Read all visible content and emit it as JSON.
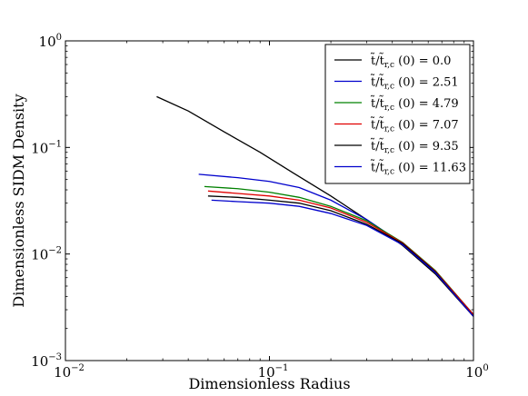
{
  "chart_data": {
    "type": "line",
    "xlabel": "Dimensionless Radius",
    "ylabel": "Dimensionless SIDM Density",
    "xscale": "log",
    "yscale": "log",
    "xlim": [
      0.01,
      1
    ],
    "ylim": [
      0.001,
      1
    ],
    "x_ticks": [
      {
        "value": 0.01,
        "base": "10",
        "exp": "−2"
      },
      {
        "value": 0.1,
        "base": "10",
        "exp": "−1"
      },
      {
        "value": 1,
        "base": "10",
        "exp": "0"
      }
    ],
    "y_ticks": [
      {
        "value": 0.001,
        "base": "10",
        "exp": "−3"
      },
      {
        "value": 0.01,
        "base": "10",
        "exp": "−2"
      },
      {
        "value": 0.1,
        "base": "10",
        "exp": "−1"
      },
      {
        "value": 1,
        "base": "10",
        "exp": "0"
      }
    ],
    "grid": false,
    "legend_position": "top-right",
    "legend_label_prefix": "t̃/t̃",
    "legend_label_sub": "r,c",
    "legend_label_suffix": " (0) = ",
    "series": [
      {
        "name": "t̃/t̃r,c (0) = 0.0",
        "legend_value": "0.0",
        "color": "#000000",
        "points": [
          [
            0.028,
            0.3
          ],
          [
            0.04,
            0.22
          ],
          [
            0.06,
            0.14
          ],
          [
            0.09,
            0.09
          ],
          [
            0.13,
            0.058
          ],
          [
            0.2,
            0.035
          ],
          [
            0.3,
            0.021
          ],
          [
            0.45,
            0.012
          ],
          [
            0.65,
            0.0065
          ],
          [
            1.0,
            0.0026
          ]
        ]
      },
      {
        "name": "t̃/t̃r,c (0) = 2.51",
        "legend_value": "2.51",
        "color": "#0000cc",
        "points": [
          [
            0.045,
            0.056
          ],
          [
            0.07,
            0.052
          ],
          [
            0.1,
            0.048
          ],
          [
            0.14,
            0.042
          ],
          [
            0.2,
            0.032
          ],
          [
            0.3,
            0.021
          ],
          [
            0.45,
            0.0125
          ],
          [
            0.65,
            0.0068
          ],
          [
            1.0,
            0.0027
          ]
        ]
      },
      {
        "name": "t̃/t̃r,c (0) = 4.79",
        "legend_value": "4.79",
        "color": "#008000",
        "points": [
          [
            0.048,
            0.043
          ],
          [
            0.07,
            0.041
          ],
          [
            0.1,
            0.038
          ],
          [
            0.14,
            0.034
          ],
          [
            0.2,
            0.028
          ],
          [
            0.3,
            0.0205
          ],
          [
            0.45,
            0.0128
          ],
          [
            0.65,
            0.007
          ],
          [
            1.0,
            0.0027
          ]
        ]
      },
      {
        "name": "t̃/t̃r,c (0) = 7.07",
        "legend_value": "7.07",
        "color": "#e00000",
        "points": [
          [
            0.05,
            0.039
          ],
          [
            0.07,
            0.037
          ],
          [
            0.1,
            0.035
          ],
          [
            0.14,
            0.032
          ],
          [
            0.2,
            0.027
          ],
          [
            0.3,
            0.0198
          ],
          [
            0.45,
            0.0127
          ],
          [
            0.65,
            0.0069
          ],
          [
            1.0,
            0.0027
          ]
        ]
      },
      {
        "name": "t̃/t̃r,c (0) = 9.35",
        "legend_value": "9.35",
        "color": "#000000",
        "points": [
          [
            0.05,
            0.035
          ],
          [
            0.07,
            0.034
          ],
          [
            0.1,
            0.032
          ],
          [
            0.14,
            0.03
          ],
          [
            0.2,
            0.0255
          ],
          [
            0.3,
            0.019
          ],
          [
            0.45,
            0.0125
          ],
          [
            0.65,
            0.0068
          ],
          [
            1.0,
            0.0026
          ]
        ]
      },
      {
        "name": "t̃/t̃r,c (0) = 11.63",
        "legend_value": "11.63",
        "color": "#0000cc",
        "points": [
          [
            0.052,
            0.032
          ],
          [
            0.07,
            0.031
          ],
          [
            0.1,
            0.03
          ],
          [
            0.14,
            0.028
          ],
          [
            0.2,
            0.024
          ],
          [
            0.3,
            0.0185
          ],
          [
            0.45,
            0.0122
          ],
          [
            0.65,
            0.0067
          ],
          [
            1.0,
            0.0026
          ]
        ]
      }
    ]
  }
}
